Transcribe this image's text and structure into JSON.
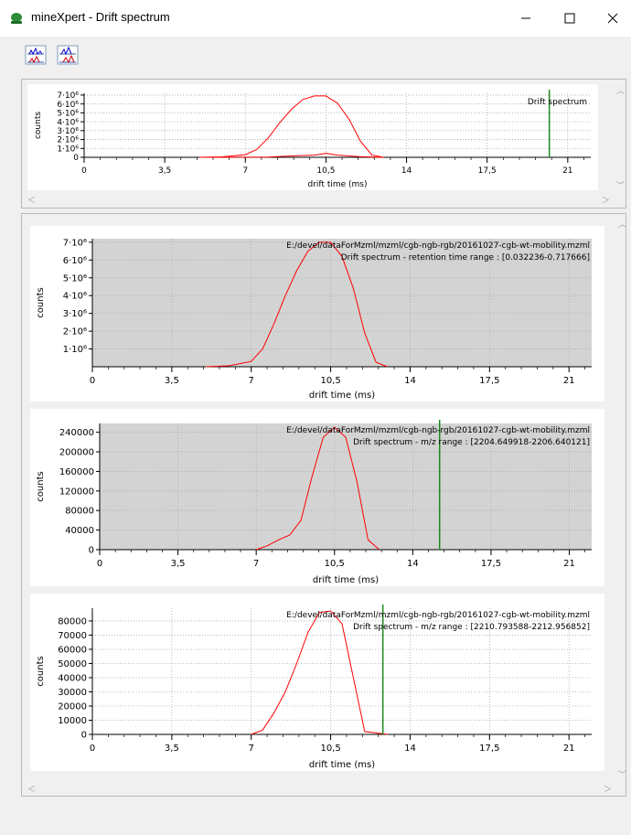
{
  "window": {
    "title": "mineXpert - Drift spectrum",
    "icon": "mineXpert-app-icon",
    "controls": [
      "minimize-icon",
      "maximize-icon",
      "close-icon"
    ]
  },
  "toolbar": {
    "buttons": [
      "toggle-plot-overlay-icon",
      "toggle-plot-sync-icon"
    ]
  },
  "chart_data": [
    {
      "type": "line",
      "panel": "overview",
      "series": [
        {
          "color": "#ff0000",
          "x": [
            5,
            6,
            7,
            7.5,
            8,
            8.5,
            9,
            9.5,
            10,
            10.5,
            11,
            11.5,
            12,
            12.5,
            13
          ],
          "y": [
            0,
            50000,
            300000,
            900000,
            2200000,
            3900000,
            5400000,
            6500000,
            6900000,
            6900000,
            6100000,
            4300000,
            1800000,
            250000,
            0
          ]
        },
        {
          "color": "#ff0000",
          "x": [
            5,
            8,
            9,
            10,
            10.5,
            11,
            12,
            13
          ],
          "y": [
            0,
            20000,
            150000,
            250000,
            450000,
            250000,
            60000,
            0
          ]
        }
      ],
      "legend": "Drift spectrum",
      "xlabel": "drift time (ms)",
      "ylabel": "counts",
      "xticks": [
        "0",
        "3,5",
        "7",
        "10,5",
        "14",
        "17,5",
        "21"
      ],
      "yticks": [
        "0",
        "1·10⁶",
        "2·10⁶",
        "3·10⁶",
        "4·10⁶",
        "5·10⁶",
        "6·10⁶",
        "7·10⁶"
      ],
      "xlim": [
        0,
        22
      ],
      "ylim": [
        0,
        7200000
      ],
      "marker_x": 20.2,
      "grid": true,
      "background": "#ffffff"
    },
    {
      "type": "line",
      "panel": "file-1",
      "series": [
        {
          "color": "#ff0000",
          "x": [
            5,
            6,
            7,
            7.5,
            8,
            8.5,
            9,
            9.5,
            10,
            10.5,
            11,
            11.5,
            12,
            12.5,
            13
          ],
          "y": [
            0,
            50000,
            300000,
            1000000,
            2400000,
            4000000,
            5400000,
            6500000,
            7000000,
            7000000,
            6200000,
            4400000,
            1900000,
            250000,
            0
          ]
        }
      ],
      "annotation": [
        "E:/devel/dataForMzml/mzml/cgb-ngb-rgb/20161027-cgb-wt-mobility.mzml",
        "Drift spectrum - retention time range : [0.032236-0.717666]"
      ],
      "xlabel": "drift time (ms)",
      "ylabel": "counts",
      "xticks": [
        "0",
        "3,5",
        "7",
        "10,5",
        "14",
        "17,5",
        "21"
      ],
      "yticks": [
        "1·10⁶",
        "2·10⁶",
        "3·10⁶",
        "4·10⁶",
        "5·10⁶",
        "6·10⁶",
        "7·10⁶"
      ],
      "xlim": [
        0,
        22
      ],
      "ylim": [
        0,
        7200000
      ],
      "grid": true,
      "background": "#d3d3d3"
    },
    {
      "type": "line",
      "panel": "file-2",
      "series": [
        {
          "color": "#ff0000",
          "x": [
            7,
            7.5,
            8,
            8.5,
            9,
            9.5,
            10,
            10.5,
            11,
            11.5,
            12,
            12.5
          ],
          "y": [
            0,
            8000,
            20000,
            30000,
            60000,
            150000,
            230000,
            250000,
            230000,
            140000,
            20000,
            0
          ]
        }
      ],
      "marker_x": 15.2,
      "annotation": [
        "E:/devel/dataForMzml/mzml/cgb-ngb-rgb/20161027-cgb-wt-mobility.mzml",
        "Drift spectrum - m/z range : [2204.649918-2206.640121]"
      ],
      "xlabel": "drift time (ms)",
      "ylabel": "counts",
      "xticks": [
        "0",
        "3,5",
        "7",
        "10,5",
        "14",
        "17,5",
        "21"
      ],
      "yticks": [
        "0",
        "40000",
        "80000",
        "120000",
        "160000",
        "200000",
        "240000"
      ],
      "xlim": [
        0,
        22
      ],
      "ylim": [
        0,
        258000
      ],
      "grid": true,
      "background": "#d3d3d3"
    },
    {
      "type": "line",
      "panel": "file-3",
      "series": [
        {
          "color": "#ff0000",
          "x": [
            7,
            7.5,
            8,
            8.5,
            9,
            9.5,
            10,
            10.5,
            11,
            11.5,
            12,
            12.5,
            13
          ],
          "y": [
            0,
            3000,
            15000,
            30000,
            50000,
            72000,
            86000,
            87000,
            78000,
            40000,
            2000,
            1000,
            0
          ]
        }
      ],
      "marker_x": 12.8,
      "annotation": [
        "E:/devel/dataForMzml/mzml/cgb-ngb-rgb/20161027-cgb-wt-mobility.mzml",
        "Drift spectrum - m/z range : [2210.793588-2212.956852]"
      ],
      "xlabel": "drift time (ms)",
      "ylabel": "counts",
      "xticks": [
        "0",
        "3,5",
        "7",
        "10,5",
        "14",
        "17,5",
        "21"
      ],
      "yticks": [
        "0",
        "10000",
        "20000",
        "30000",
        "40000",
        "50000",
        "60000",
        "70000",
        "80000"
      ],
      "xlim": [
        0,
        22
      ],
      "ylim": [
        0,
        89000
      ],
      "grid": true,
      "background": "#ffffff"
    }
  ]
}
